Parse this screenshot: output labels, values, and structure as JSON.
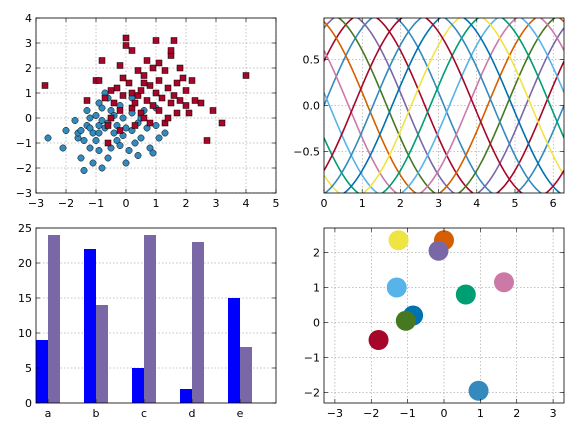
{
  "colors": {
    "scatter_circle": "#348ABD",
    "scatter_square": "#A60628",
    "bars_a": "#0000FF",
    "bars_b": "#7A68A6",
    "cycle": [
      "#348ABD",
      "#A60628",
      "#7A68A6",
      "#467821",
      "#D55E00",
      "#CC79A7",
      "#56B4E9",
      "#009E73",
      "#F0E442",
      "#0072B2"
    ]
  },
  "chart_data": [
    {
      "type": "scatter",
      "title": "",
      "xlabel": "",
      "ylabel": "",
      "xlim": [
        -3,
        5
      ],
      "ylim": [
        -3,
        4
      ],
      "xticks": [
        -3,
        -2,
        -1,
        0,
        1,
        2,
        3,
        4,
        5
      ],
      "yticks": [
        -3,
        -2,
        -1,
        0,
        1,
        2,
        3,
        4
      ],
      "grid": true,
      "series": [
        {
          "marker": "circle",
          "points": [
            [
              -2.6,
              -0.8
            ],
            [
              -2.1,
              -1.2
            ],
            [
              -2.0,
              -0.5
            ],
            [
              -1.7,
              -0.1
            ],
            [
              -1.6,
              -0.8
            ],
            [
              -1.6,
              -0.6
            ],
            [
              -1.5,
              -1.6
            ],
            [
              -1.5,
              -0.5
            ],
            [
              -1.4,
              -2.1
            ],
            [
              -1.4,
              -0.9
            ],
            [
              -1.3,
              -0.3
            ],
            [
              -1.3,
              0.3
            ],
            [
              -1.2,
              -0.4
            ],
            [
              -1.2,
              -1.2
            ],
            [
              -1.1,
              -0.6
            ],
            [
              -1.1,
              -1.8
            ],
            [
              -1.0,
              0.1
            ],
            [
              -1.0,
              -0.9
            ],
            [
              -0.9,
              -0.3
            ],
            [
              -0.9,
              -0.6
            ],
            [
              -0.9,
              -1.3
            ],
            [
              -0.8,
              -2.0
            ],
            [
              -0.8,
              0.4
            ],
            [
              -0.8,
              -0.1
            ],
            [
              -0.7,
              -0.4
            ],
            [
              -0.7,
              1.0
            ],
            [
              -0.6,
              0.8
            ],
            [
              -0.6,
              -0.2
            ],
            [
              -0.5,
              -1.2
            ],
            [
              -0.5,
              0.3
            ],
            [
              -0.4,
              -0.6
            ],
            [
              -0.4,
              0.1
            ],
            [
              -0.3,
              -0.9
            ],
            [
              -0.3,
              -0.3
            ],
            [
              -0.2,
              0.5
            ],
            [
              -0.2,
              -1.1
            ],
            [
              -0.1,
              0.0
            ],
            [
              -0.1,
              -0.7
            ],
            [
              0.0,
              -1.8
            ],
            [
              0.0,
              -0.4
            ],
            [
              0.1,
              -1.3
            ],
            [
              0.2,
              0.2
            ],
            [
              0.2,
              -0.5
            ],
            [
              0.3,
              -1.0
            ],
            [
              0.4,
              -0.2
            ],
            [
              0.4,
              -1.5
            ],
            [
              0.5,
              -0.8
            ],
            [
              0.6,
              0.3
            ],
            [
              0.7,
              -0.4
            ],
            [
              0.8,
              -1.2
            ],
            [
              0.9,
              -1.4
            ],
            [
              1.0,
              -0.3
            ],
            [
              1.1,
              -0.8
            ],
            [
              1.3,
              -0.6
            ],
            [
              1.0,
              0.4
            ],
            [
              0.2,
              0.8
            ],
            [
              -0.9,
              0.6
            ],
            [
              -1.2,
              0.0
            ],
            [
              -0.6,
              -1.6
            ],
            [
              0.5,
              0.0
            ]
          ]
        },
        {
          "marker": "square",
          "points": [
            [
              -2.7,
              1.3
            ],
            [
              -1.3,
              0.7
            ],
            [
              -1.0,
              1.5
            ],
            [
              -0.9,
              1.5
            ],
            [
              -0.8,
              2.3
            ],
            [
              -0.7,
              0.8
            ],
            [
              -0.6,
              -0.3
            ],
            [
              -0.6,
              -1.0
            ],
            [
              -0.5,
              0.0
            ],
            [
              -0.4,
              0.6
            ],
            [
              -0.3,
              1.2
            ],
            [
              -0.2,
              0.3
            ],
            [
              -0.2,
              -0.5
            ],
            [
              -0.1,
              0.9
            ],
            [
              -0.1,
              1.6
            ],
            [
              0.0,
              2.9
            ],
            [
              0.0,
              3.2
            ],
            [
              0.1,
              1.4
            ],
            [
              0.2,
              2.7
            ],
            [
              0.2,
              1.0
            ],
            [
              0.2,
              0.4
            ],
            [
              0.3,
              -0.3
            ],
            [
              0.3,
              0.6
            ],
            [
              0.4,
              1.9
            ],
            [
              0.4,
              0.9
            ],
            [
              0.5,
              1.1
            ],
            [
              0.5,
              0.2
            ],
            [
              0.6,
              0.0
            ],
            [
              0.6,
              1.7
            ],
            [
              0.7,
              2.3
            ],
            [
              0.7,
              0.7
            ],
            [
              0.8,
              1.3
            ],
            [
              0.8,
              -0.2
            ],
            [
              0.9,
              2.0
            ],
            [
              0.9,
              0.5
            ],
            [
              1.0,
              3.1
            ],
            [
              1.0,
              1.0
            ],
            [
              1.1,
              1.5
            ],
            [
              1.1,
              0.3
            ],
            [
              1.2,
              0.8
            ],
            [
              1.3,
              1.9
            ],
            [
              1.3,
              -0.2
            ],
            [
              1.4,
              0.0
            ],
            [
              1.4,
              1.2
            ],
            [
              1.5,
              0.6
            ],
            [
              1.5,
              2.5
            ],
            [
              1.6,
              3.1
            ],
            [
              1.6,
              0.9
            ],
            [
              1.7,
              1.4
            ],
            [
              1.7,
              0.2
            ],
            [
              1.8,
              2.0
            ],
            [
              1.8,
              0.7
            ],
            [
              1.9,
              1.6
            ],
            [
              2.0,
              0.5
            ],
            [
              2.0,
              1.1
            ],
            [
              2.1,
              0.2
            ],
            [
              2.2,
              1.5
            ],
            [
              2.3,
              0.7
            ],
            [
              2.5,
              0.6
            ],
            [
              2.7,
              -0.9
            ],
            [
              2.9,
              0.3
            ],
            [
              3.2,
              -0.2
            ],
            [
              4.0,
              1.7
            ],
            [
              1.5,
              2.7
            ],
            [
              -0.2,
              2.1
            ],
            [
              0.6,
              1.4
            ],
            [
              1.1,
              2.2
            ],
            [
              -0.5,
              1.1
            ]
          ]
        }
      ]
    },
    {
      "type": "line",
      "title": "",
      "xlabel": "",
      "ylabel": "",
      "xlim": [
        0,
        6.2832
      ],
      "ylim": [
        -0.95,
        0.95
      ],
      "xticks": [
        0,
        1,
        2,
        3,
        4,
        5,
        6
      ],
      "yticks": [
        -0.5,
        0.0,
        0.5
      ],
      "ytick_labels": [
        "−0.5",
        "0.0",
        "0.5"
      ],
      "grid": true,
      "series_function": "y = sin(x + phase)",
      "phases": [
        0.0,
        0.5,
        1.0,
        1.5,
        2.0,
        2.5,
        3.0,
        3.5,
        4.0,
        4.5,
        5.0,
        5.5
      ]
    },
    {
      "type": "bar",
      "title": "",
      "xlabel": "",
      "ylabel": "",
      "categories": [
        "a",
        "b",
        "c",
        "d",
        "e"
      ],
      "ylim": [
        0,
        25
      ],
      "yticks": [
        0,
        5,
        10,
        15,
        20,
        25
      ],
      "grid": true,
      "series": [
        {
          "values": [
            9,
            22,
            5,
            2,
            15
          ]
        },
        {
          "values": [
            24,
            14,
            24,
            23,
            8
          ]
        }
      ]
    },
    {
      "type": "scatter",
      "title": "",
      "xlabel": "",
      "ylabel": "",
      "xlim": [
        -3.3,
        3.3
      ],
      "ylim": [
        -2.3,
        2.7
      ],
      "xticks": [
        -3,
        -2,
        -1,
        0,
        1,
        2,
        3
      ],
      "xtick_labels": [
        "−3",
        "−2",
        "−1",
        "0",
        "1",
        "2",
        "3"
      ],
      "yticks": [
        -2,
        -1,
        0,
        1,
        2
      ],
      "ytick_labels": [
        "−2",
        "−1",
        "0",
        "1",
        "2"
      ],
      "grid": true,
      "points": [
        {
          "x": 0.0,
          "y": 2.35,
          "color": "#D55E00"
        },
        {
          "x": -1.25,
          "y": 2.35,
          "color": "#F0E442"
        },
        {
          "x": -0.15,
          "y": 2.05,
          "color": "#7A68A6"
        },
        {
          "x": 1.65,
          "y": 1.15,
          "color": "#CC79A7"
        },
        {
          "x": -1.3,
          "y": 1.0,
          "color": "#56B4E9"
        },
        {
          "x": 0.6,
          "y": 0.8,
          "color": "#009E73"
        },
        {
          "x": -0.85,
          "y": 0.2,
          "color": "#0072B2"
        },
        {
          "x": -1.05,
          "y": 0.05,
          "color": "#467821"
        },
        {
          "x": -1.8,
          "y": -0.5,
          "color": "#A60628"
        },
        {
          "x": 0.95,
          "y": -1.95,
          "color": "#348ABD"
        }
      ]
    }
  ]
}
